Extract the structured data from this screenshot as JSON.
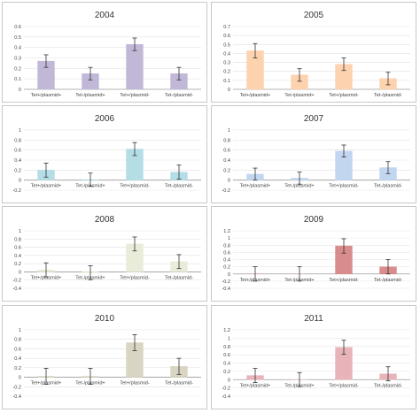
{
  "chart_data": [
    {
      "type": "bar",
      "title": "2004",
      "categories": [
        "Tet+/plasmid+",
        "Tet-/plasmid+",
        "Tet+/plasmid-",
        "Tet-/plasmid-"
      ],
      "values": [
        0.27,
        0.15,
        0.43,
        0.15
      ],
      "error": [
        0.06,
        0.06,
        0.06,
        0.06
      ],
      "color": "#c1b8d8",
      "ylim": [
        0,
        0.6
      ],
      "yticks": [
        0,
        0.1,
        0.2,
        0.3,
        0.4,
        0.5,
        0.6
      ],
      "ytick_labels": [
        "0",
        "0.1",
        "0.2",
        "0.3",
        "0.4",
        "0.5",
        "0.6"
      ]
    },
    {
      "type": "bar",
      "title": "2005",
      "categories": [
        "Tet+/plasmid+",
        "Tet-/plasmid+",
        "Tet+/plasmid-",
        "Tet-/plasmid-"
      ],
      "values": [
        0.43,
        0.16,
        0.28,
        0.12
      ],
      "error": [
        0.08,
        0.07,
        0.07,
        0.07
      ],
      "color": "#fdd2ae",
      "ylim": [
        0,
        0.7
      ],
      "yticks": [
        0,
        0.1,
        0.2,
        0.3,
        0.4,
        0.5,
        0.6,
        0.7
      ],
      "ytick_labels": [
        "0",
        "0.1",
        "0.2",
        "0.3",
        "0.4",
        "0.5",
        "0.6",
        "0.7"
      ]
    },
    {
      "type": "bar",
      "title": "2006",
      "categories": [
        "Tet+/plasmid+",
        "Tet-/plasmid+",
        "Tet+/plasmid-",
        "Tet-/plasmid-"
      ],
      "values": [
        0.2,
        0.01,
        0.62,
        0.16
      ],
      "error": [
        0.14,
        0.13,
        0.13,
        0.14
      ],
      "color": "#b5dde6",
      "ylim": [
        -0.2,
        1
      ],
      "yticks": [
        -0.2,
        0,
        0.2,
        0.4,
        0.6,
        0.8,
        1
      ],
      "ytick_labels": [
        "-0.2",
        "0",
        "0.2",
        "0.4",
        "0.6",
        "0.8",
        "1"
      ]
    },
    {
      "type": "bar",
      "title": "2007",
      "categories": [
        "Tet+/plasmid+",
        "Tet-/plasmid+",
        "Tet+/plasmid-",
        "Tet-/plasmid-"
      ],
      "values": [
        0.12,
        0.04,
        0.58,
        0.25
      ],
      "error": [
        0.12,
        0.12,
        0.12,
        0.12
      ],
      "color": "#c2d6f0",
      "ylim": [
        -0.2,
        1
      ],
      "yticks": [
        -0.2,
        0,
        0.2,
        0.4,
        0.6,
        0.8,
        1
      ],
      "ytick_labels": [
        "-0.2",
        "0",
        "0.2",
        "0.4",
        "0.6",
        "0.8",
        "1"
      ]
    },
    {
      "type": "bar",
      "title": "2008",
      "categories": [
        "Tet+/plasmid+",
        "Tet-/plasmid+",
        "Tet+/plasmid-",
        "Tet-/plasmid-"
      ],
      "values": [
        0.05,
        -0.02,
        0.68,
        0.25
      ],
      "error": [
        0.17,
        0.17,
        0.17,
        0.17
      ],
      "color": "#e8ecd8",
      "ylim": [
        -0.4,
        1
      ],
      "yticks": [
        -0.4,
        -0.2,
        0,
        0.2,
        0.4,
        0.6,
        0.8,
        1
      ],
      "ytick_labels": [
        "-0.4",
        "-0.2",
        "0",
        "0.2",
        "0.4",
        "0.6",
        "0.8",
        "1"
      ]
    },
    {
      "type": "bar",
      "title": "2009",
      "categories": [
        "Tet+/plasmid+",
        "Tet-/plasmid+",
        "Tet+/plasmid-",
        "Tet-/plasmid-"
      ],
      "values": [
        0.0,
        0.0,
        0.78,
        0.2
      ],
      "error": [
        0.2,
        0.2,
        0.2,
        0.2
      ],
      "color": "#d98c8c",
      "ylim": [
        -0.4,
        1.2
      ],
      "yticks": [
        -0.4,
        -0.2,
        0,
        0.2,
        0.4,
        0.6,
        0.8,
        1,
        1.2
      ],
      "ytick_labels": [
        "-0.4",
        "-0.2",
        "0",
        "0.2",
        "0.4",
        "0.6",
        "0.8",
        "1",
        "1.2"
      ]
    },
    {
      "type": "bar",
      "title": "2010",
      "categories": [
        "Tet+/plasmid+",
        "Tet-/plasmid+",
        "Tet+/plasmid-",
        "Tet-/plasmid-"
      ],
      "values": [
        0.02,
        0.02,
        0.73,
        0.23
      ],
      "error": [
        0.17,
        0.17,
        0.17,
        0.17
      ],
      "color": "#d9d5c2",
      "ylim": [
        -0.4,
        1
      ],
      "yticks": [
        -0.4,
        -0.2,
        0,
        0.2,
        0.4,
        0.6,
        0.8,
        1
      ],
      "ytick_labels": [
        "-0.4",
        "-0.2",
        "0",
        "0.2",
        "0.4",
        "0.6",
        "0.8",
        "1"
      ]
    },
    {
      "type": "bar",
      "title": "2011",
      "categories": [
        "Tet+/plasmid+",
        "Tet-/plasmid+",
        "Tet+/plasmid-",
        "Tet-/plasmid-"
      ],
      "values": [
        0.1,
        0.0,
        0.78,
        0.14
      ],
      "error": [
        0.17,
        0.17,
        0.17,
        0.17
      ],
      "color": "#e8b4ba",
      "ylim": [
        -0.4,
        1.2
      ],
      "yticks": [
        -0.4,
        -0.2,
        0,
        0.2,
        0.4,
        0.6,
        0.8,
        1,
        1.2
      ],
      "ytick_labels": [
        "-0.4",
        "-0.2",
        "0",
        "0.2",
        "0.4",
        "0.6",
        "0.8",
        "1",
        "1.2"
      ]
    }
  ]
}
